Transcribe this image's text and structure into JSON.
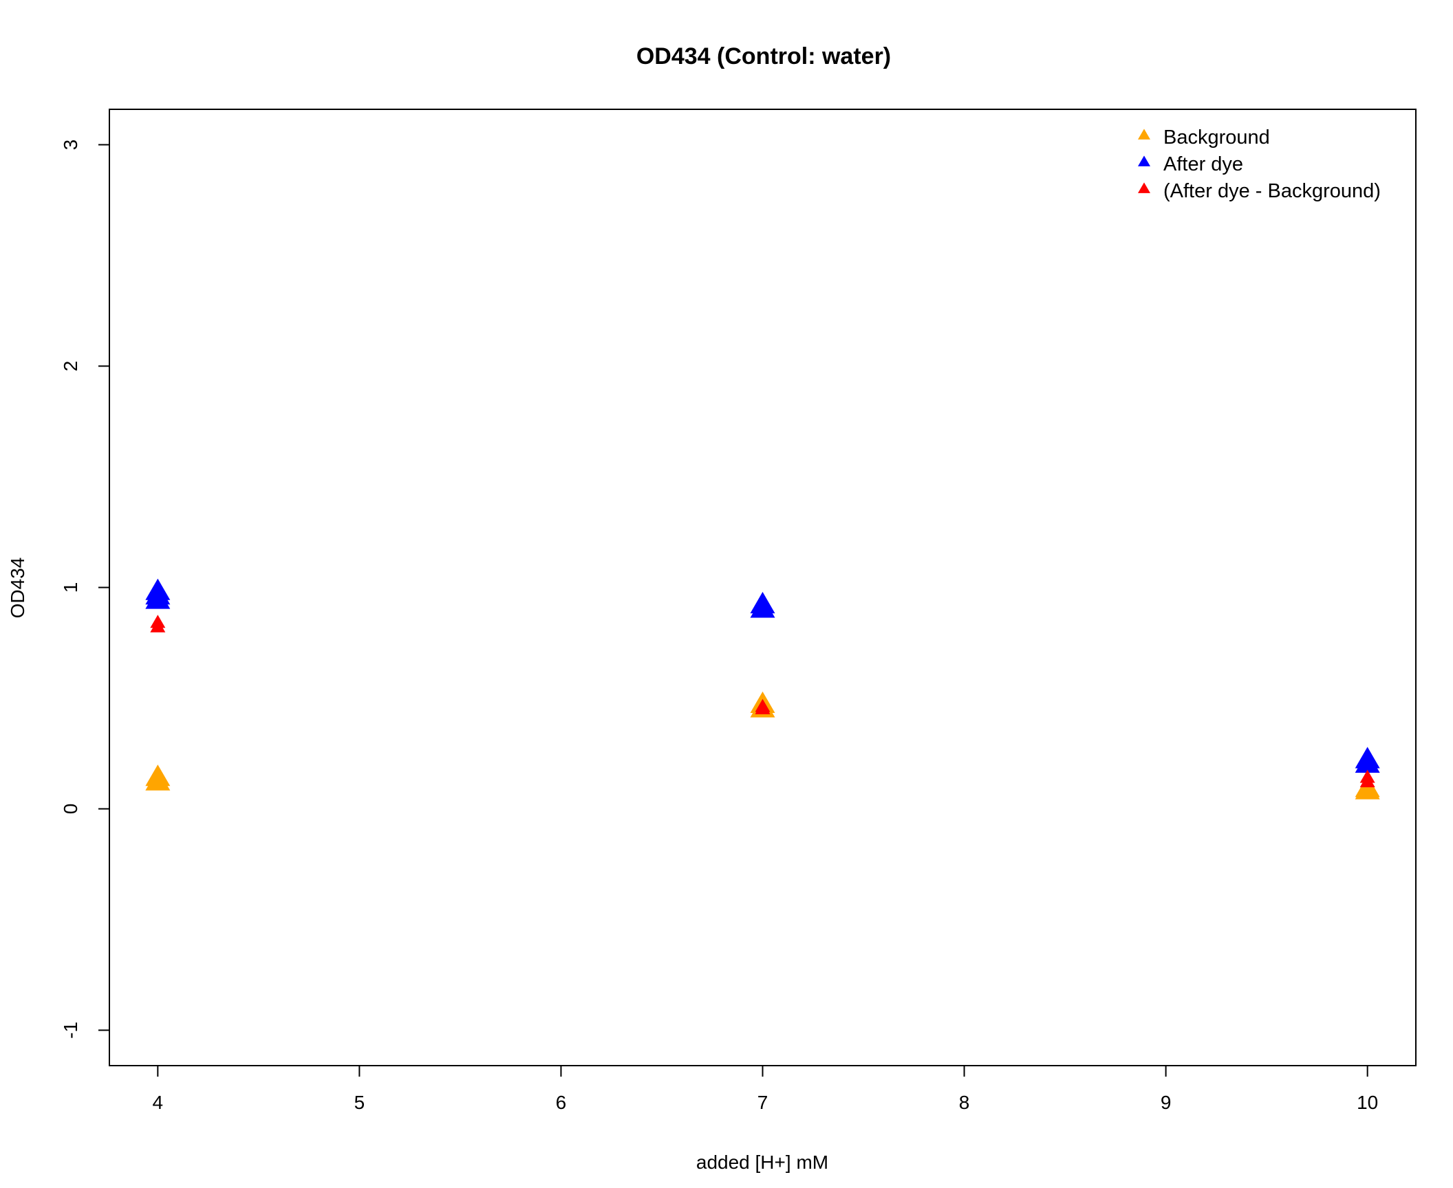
{
  "chart_data": {
    "type": "scatter",
    "title": "OD434 (Control: water)",
    "xlabel": "added [H+] mM",
    "ylabel": "OD434",
    "xlim": [
      3.76,
      10.24
    ],
    "ylim": [
      -1.16,
      3.16
    ],
    "xticks": [
      4,
      5,
      6,
      7,
      8,
      9,
      10
    ],
    "yticks": [
      -1,
      0,
      1,
      2,
      3
    ],
    "grid": false,
    "legend_position": "top-right",
    "marker": "filled-triangle",
    "series": [
      {
        "name": "Background",
        "color": "#FFA500",
        "points": [
          {
            "x": 4,
            "y": 0.12
          },
          {
            "x": 4,
            "y": 0.14
          },
          {
            "x": 7,
            "y": 0.45
          },
          {
            "x": 7,
            "y": 0.47
          },
          {
            "x": 10,
            "y": 0.08
          },
          {
            "x": 10,
            "y": 0.09
          }
        ]
      },
      {
        "name": "After dye",
        "color": "#0000FF",
        "points": [
          {
            "x": 4,
            "y": 0.94
          },
          {
            "x": 4,
            "y": 0.96
          },
          {
            "x": 4,
            "y": 0.98
          },
          {
            "x": 7,
            "y": 0.9
          },
          {
            "x": 7,
            "y": 0.92
          },
          {
            "x": 10,
            "y": 0.2
          },
          {
            "x": 10,
            "y": 0.22
          }
        ]
      },
      {
        "name": "(After dye - Background)",
        "color": "#FF0000",
        "points": [
          {
            "x": 4,
            "y": 0.82
          },
          {
            "x": 4,
            "y": 0.84
          },
          {
            "x": 7,
            "y": 0.45
          },
          {
            "x": 7,
            "y": 0.46
          },
          {
            "x": 10,
            "y": 0.12
          },
          {
            "x": 10,
            "y": 0.14
          }
        ]
      }
    ]
  }
}
